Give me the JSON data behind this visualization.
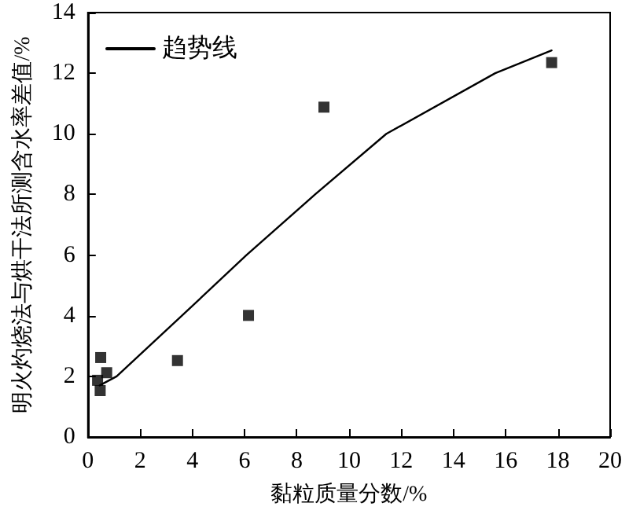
{
  "chart_data": {
    "type": "scatter",
    "xlabel": "黏粒质量分数/%",
    "ylabel": "明火灼烧法与烘干法所测含水率差值/%",
    "xlim": [
      0,
      20
    ],
    "xticks": [
      0,
      2,
      4,
      6,
      8,
      10,
      12,
      14,
      16,
      18,
      20
    ],
    "ylim": [
      0,
      14
    ],
    "yticks": [
      0,
      2,
      4,
      6,
      8,
      10,
      12,
      14
    ],
    "grid": false,
    "legend": "top left",
    "marker": "square",
    "series": [
      {
        "color": "#000000",
        "x": [
          0.37,
          0.47,
          0.49,
          0.72,
          3.43,
          6.15,
          9.04,
          17.76
        ],
        "values": [
          1.87,
          1.53,
          2.62,
          2.12,
          2.52,
          4.01,
          10.88,
          12.35
        ]
      },
      {
        "type": "line",
        "name": "趋势线",
        "color": "#000000",
        "marker": "none",
        "line_style": "solid",
        "x": [
          0.45,
          1.1,
          3.6,
          6.07,
          8.7,
          11.43,
          15.6,
          17.76
        ],
        "values": [
          1.7,
          2.0,
          4.0,
          6.0,
          8.0,
          10.0,
          12.0,
          12.75
        ]
      }
    ]
  }
}
